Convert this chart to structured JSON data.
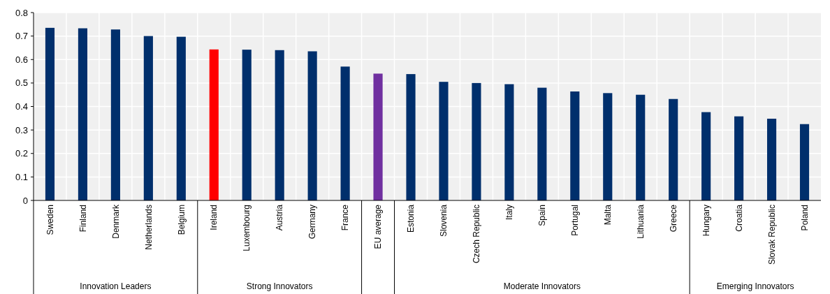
{
  "chart_data": {
    "type": "bar",
    "categories": [
      "Sweden",
      "Finland",
      "Denmark",
      "Netherlands",
      "Belgium",
      "Ireland",
      "Luxembourg",
      "Austria",
      "Germany",
      "France",
      "EU average",
      "Estonia",
      "Slovenia",
      "Czech Republic",
      "Italy",
      "Spain",
      "Portugal",
      "Malta",
      "Lithuania",
      "Greece",
      "Hungary",
      "Croatia",
      "Slovak Republic",
      "Poland"
    ],
    "values": [
      0.735,
      0.733,
      0.728,
      0.7,
      0.697,
      0.643,
      0.642,
      0.64,
      0.635,
      0.57,
      0.54,
      0.538,
      0.505,
      0.5,
      0.495,
      0.48,
      0.464,
      0.457,
      0.45,
      0.432,
      0.376,
      0.358,
      0.348,
      0.325
    ],
    "colors": [
      "#002f6c",
      "#002f6c",
      "#002f6c",
      "#002f6c",
      "#002f6c",
      "#ff0000",
      "#002f6c",
      "#002f6c",
      "#002f6c",
      "#002f6c",
      "#7030a0",
      "#002f6c",
      "#002f6c",
      "#002f6c",
      "#002f6c",
      "#002f6c",
      "#002f6c",
      "#002f6c",
      "#002f6c",
      "#002f6c",
      "#002f6c",
      "#002f6c",
      "#002f6c",
      "#002f6c"
    ],
    "ylim": [
      0,
      0.8
    ],
    "yticks": [
      0,
      0.1,
      0.2,
      0.3,
      0.4,
      0.5,
      0.6,
      0.7,
      0.8
    ],
    "grid": true,
    "annotations": [
      "Innovation Leaders",
      "Strong Innovators",
      "Moderate Innovators",
      "Emerging Innovators"
    ]
  }
}
